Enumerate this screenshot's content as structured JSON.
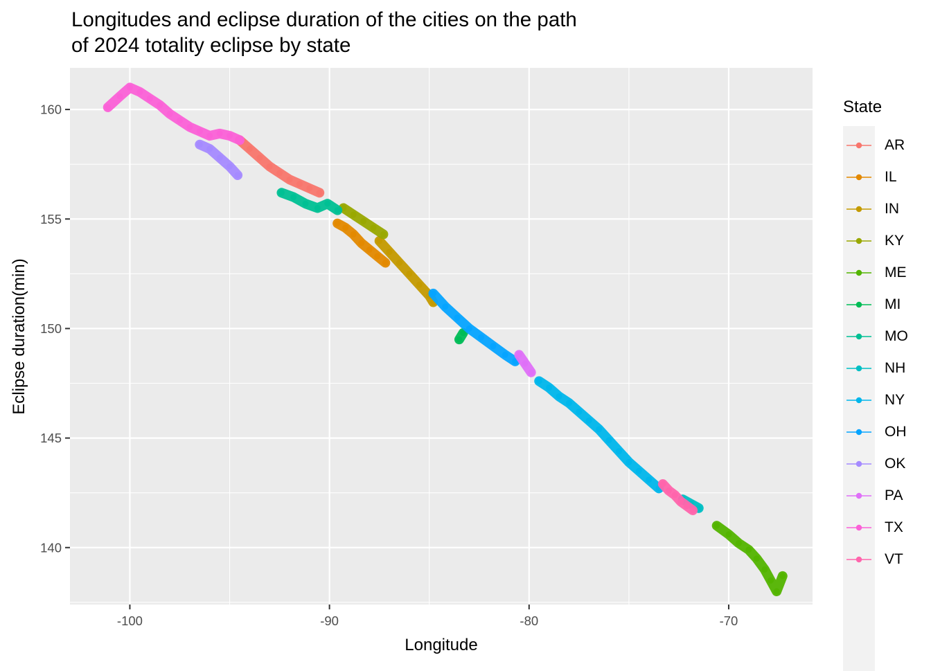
{
  "title_lines": [
    "Longitudes and eclipse duration of the cities on the path",
    "of 2024 totality eclipse by state"
  ],
  "chart_data": {
    "type": "scatter",
    "title": "Longitudes and eclipse duration of the cities on the path of 2024 totality eclipse by state",
    "xlabel": "Longitude",
    "ylabel": "Eclipse duration(min)",
    "xlim": [
      -103,
      -65.8
    ],
    "ylim": [
      137.4,
      161.9
    ],
    "xticks": [
      -100,
      -90,
      -80,
      -70
    ],
    "yticks": [
      140,
      145,
      150,
      155,
      160
    ],
    "xtick_labels": [
      "-100",
      "-90",
      "-80",
      "-70"
    ],
    "ytick_labels": [
      "140",
      "145",
      "150",
      "155",
      "160"
    ],
    "grid": true,
    "legend_title": "State",
    "legend_position": "right",
    "series": [
      {
        "name": "AR",
        "color": "#F8766D",
        "x": [
          -94.5,
          -94.0,
          -93.5,
          -93.0,
          -92.5,
          -92.0,
          -91.5,
          -91.0,
          -90.5
        ],
        "y": [
          158.6,
          158.2,
          157.8,
          157.4,
          157.1,
          156.8,
          156.6,
          156.4,
          156.2
        ]
      },
      {
        "name": "IL",
        "color": "#E38900",
        "x": [
          -89.6,
          -89.2,
          -88.8,
          -88.4,
          -88.0,
          -87.6,
          -87.2
        ],
        "y": [
          154.8,
          154.6,
          154.3,
          153.9,
          153.6,
          153.3,
          153.0
        ]
      },
      {
        "name": "IN",
        "color": "#C49A00",
        "x": [
          -87.5,
          -87.0,
          -86.5,
          -86.0,
          -85.5,
          -85.0,
          -84.8
        ],
        "y": [
          154.0,
          153.5,
          153.0,
          152.5,
          152.0,
          151.5,
          151.2
        ]
      },
      {
        "name": "KY",
        "color": "#99A800",
        "x": [
          -89.3,
          -88.8,
          -88.3,
          -87.8,
          -87.3
        ],
        "y": [
          155.5,
          155.2,
          154.9,
          154.6,
          154.3
        ]
      },
      {
        "name": "ME",
        "color": "#53B400",
        "x": [
          -70.6,
          -70.0,
          -69.5,
          -69.0,
          -68.6,
          -68.2,
          -67.9,
          -67.6,
          -67.3
        ],
        "y": [
          141.0,
          140.6,
          140.2,
          139.9,
          139.5,
          139.0,
          138.5,
          138.0,
          138.7
        ]
      },
      {
        "name": "MI",
        "color": "#00BC56",
        "x": [
          -83.5,
          -83.3
        ],
        "y": [
          149.5,
          149.8
        ]
      },
      {
        "name": "MO",
        "color": "#00C094",
        "x": [
          -92.4,
          -91.8,
          -91.2,
          -90.6,
          -90.1,
          -89.6
        ],
        "y": [
          156.2,
          156.0,
          155.7,
          155.5,
          155.7,
          155.4
        ]
      },
      {
        "name": "NH",
        "color": "#00BFC4",
        "x": [
          -72.3,
          -71.9,
          -71.5
        ],
        "y": [
          142.2,
          142.0,
          141.8
        ]
      },
      {
        "name": "NY",
        "color": "#00B6EB",
        "x": [
          -79.5,
          -79.0,
          -78.5,
          -78.0,
          -77.5,
          -77.0,
          -76.5,
          -76.0,
          -75.5,
          -75.0,
          -74.5,
          -74.0,
          -73.5
        ],
        "y": [
          147.6,
          147.3,
          146.9,
          146.6,
          146.2,
          145.8,
          145.4,
          144.9,
          144.4,
          143.9,
          143.5,
          143.1,
          142.7
        ]
      },
      {
        "name": "OH",
        "color": "#06A4FF",
        "x": [
          -84.8,
          -84.2,
          -83.6,
          -83.0,
          -82.4,
          -81.8,
          -81.2,
          -80.7
        ],
        "y": [
          151.6,
          151.0,
          150.5,
          150.0,
          149.6,
          149.2,
          148.8,
          148.5
        ]
      },
      {
        "name": "OK",
        "color": "#A58AFF",
        "x": [
          -96.5,
          -96.0,
          -95.5,
          -95.0,
          -94.6
        ],
        "y": [
          158.4,
          158.2,
          157.8,
          157.4,
          157.0
        ]
      },
      {
        "name": "PA",
        "color": "#DF70F8",
        "x": [
          -80.5,
          -80.2,
          -79.9
        ],
        "y": [
          148.8,
          148.4,
          148.0
        ]
      },
      {
        "name": "TX",
        "color": "#FB61D7",
        "x": [
          -101.1,
          -100.5,
          -100.0,
          -99.5,
          -99.0,
          -98.5,
          -98.0,
          -97.5,
          -97.0,
          -96.5,
          -96.0,
          -95.5,
          -95.0,
          -94.5
        ],
        "y": [
          160.1,
          160.6,
          161.0,
          160.8,
          160.5,
          160.2,
          159.8,
          159.5,
          159.2,
          159.0,
          158.8,
          158.9,
          158.8,
          158.6
        ]
      },
      {
        "name": "VT",
        "color": "#FF65AC",
        "x": [
          -73.3,
          -73.0,
          -72.7,
          -72.4,
          -72.1,
          -71.8
        ],
        "y": [
          142.9,
          142.6,
          142.4,
          142.1,
          141.9,
          141.7
        ]
      }
    ]
  }
}
